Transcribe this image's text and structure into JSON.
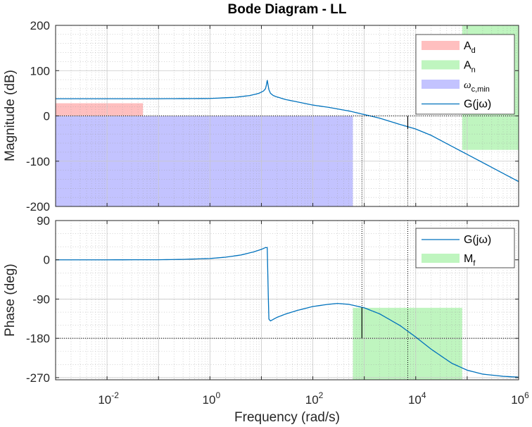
{
  "chart_data": {
    "type": "line",
    "title": "Bode Diagram - LL",
    "xlabel": "Frequency  (rad/s)",
    "x_scale": "log",
    "xlim": [
      0.001,
      1000000
    ],
    "x_ticks": [
      {
        "base": "10",
        "exp": "-2"
      },
      {
        "base": "10",
        "exp": "0"
      },
      {
        "base": "10",
        "exp": "2"
      },
      {
        "base": "10",
        "exp": "4"
      },
      {
        "base": "10",
        "exp": "6"
      }
    ],
    "grid": true,
    "colors": {
      "line": "#0072bd",
      "ad": "#ffbfbf",
      "an": "#bff5bf",
      "wc": "#c3c3ff",
      "mf": "#bff5bf"
    },
    "magnitude": {
      "ylabel": "Magnitude (dB)",
      "ylim": [
        -200,
        200
      ],
      "y_ticks": [
        "200",
        "100",
        "0",
        "-100",
        "-200"
      ],
      "legend": {
        "placement": "top-right",
        "entries": [
          {
            "main": "A",
            "sub": "d",
            "kind": "patch",
            "color": "#ffbfbf"
          },
          {
            "main": "A",
            "sub": "n",
            "kind": "patch",
            "color": "#bff5bf"
          },
          {
            "main": "ω",
            "sub": "c,min",
            "kind": "patch",
            "color": "#c3c3ff"
          },
          {
            "main": "G(jω)",
            "sub": "",
            "kind": "line",
            "color": "#0072bd"
          }
        ]
      },
      "regions": [
        {
          "name": "A_d",
          "x": [
            0.001,
            0.05
          ],
          "y": [
            0,
            28
          ],
          "color": "#ffbfbf"
        },
        {
          "name": "A_n",
          "x": [
            80000,
            1000000
          ],
          "y": [
            -75,
            200
          ],
          "color": "#bff5bf"
        },
        {
          "name": "w_c_min",
          "x": [
            0.001,
            600
          ],
          "y": [
            -200,
            0
          ],
          "color": "#c3c3ff"
        }
      ],
      "series": [
        {
          "name": "G(jω)",
          "x": [
            0.001,
            0.01,
            0.1,
            1,
            3,
            6,
            9,
            11,
            12,
            12.5,
            13,
            13.5,
            14,
            15,
            17,
            20,
            30,
            50,
            100,
            200,
            500,
            1000,
            2000,
            5000,
            10000,
            20000,
            50000,
            100000,
            200000,
            500000,
            1000000
          ],
          "values": [
            38,
            38,
            38,
            38.5,
            41,
            45,
            50,
            55,
            60,
            68,
            79,
            68,
            58,
            50,
            45,
            42,
            36,
            31,
            24,
            19,
            11,
            3,
            -5,
            -19,
            -29,
            -43,
            -67,
            -85,
            -103,
            -127,
            -145
          ]
        }
      ],
      "markers": {
        "crossover_x": 900,
        "crossover_y": 0,
        "x2": 7000,
        "x2_y": -28
      }
    },
    "phase": {
      "ylabel": "Phase (deg)",
      "ylim": [
        -275,
        90
      ],
      "y_ticks": [
        "90",
        "0",
        "-90",
        "-180",
        "-270"
      ],
      "legend": {
        "placement": "top-right",
        "entries": [
          {
            "main": "G(jω)",
            "sub": "",
            "kind": "line",
            "color": "#0072bd"
          },
          {
            "main": "M",
            "sub": "f",
            "kind": "patch",
            "color": "#bff5bf"
          }
        ]
      },
      "regions": [
        {
          "name": "M_f",
          "x": [
            600,
            80000
          ],
          "y": [
            -275,
            -110
          ],
          "color": "#bff5bf"
        }
      ],
      "series": [
        {
          "name": "G(jω)",
          "x": [
            0.001,
            0.01,
            0.1,
            0.3,
            1,
            2,
            4,
            7,
            10,
            12,
            13,
            13.6,
            14,
            15,
            20,
            30,
            50,
            100,
            200,
            300,
            500,
            1000,
            2000,
            5000,
            10000,
            20000,
            50000,
            100000,
            200000,
            500000,
            1000000
          ],
          "values": [
            0,
            0,
            0.2,
            1,
            3,
            6,
            11,
            18,
            24,
            28,
            28,
            -80,
            -136,
            -140,
            -132,
            -124,
            -116,
            -107,
            -102,
            -100,
            -102,
            -110,
            -124,
            -151,
            -177,
            -205,
            -237,
            -253,
            -262,
            -267,
            -269
          ]
        }
      ],
      "markers": {
        "x": 900,
        "y": -180,
        "y_top": -110,
        "x2": 7000
      }
    }
  }
}
